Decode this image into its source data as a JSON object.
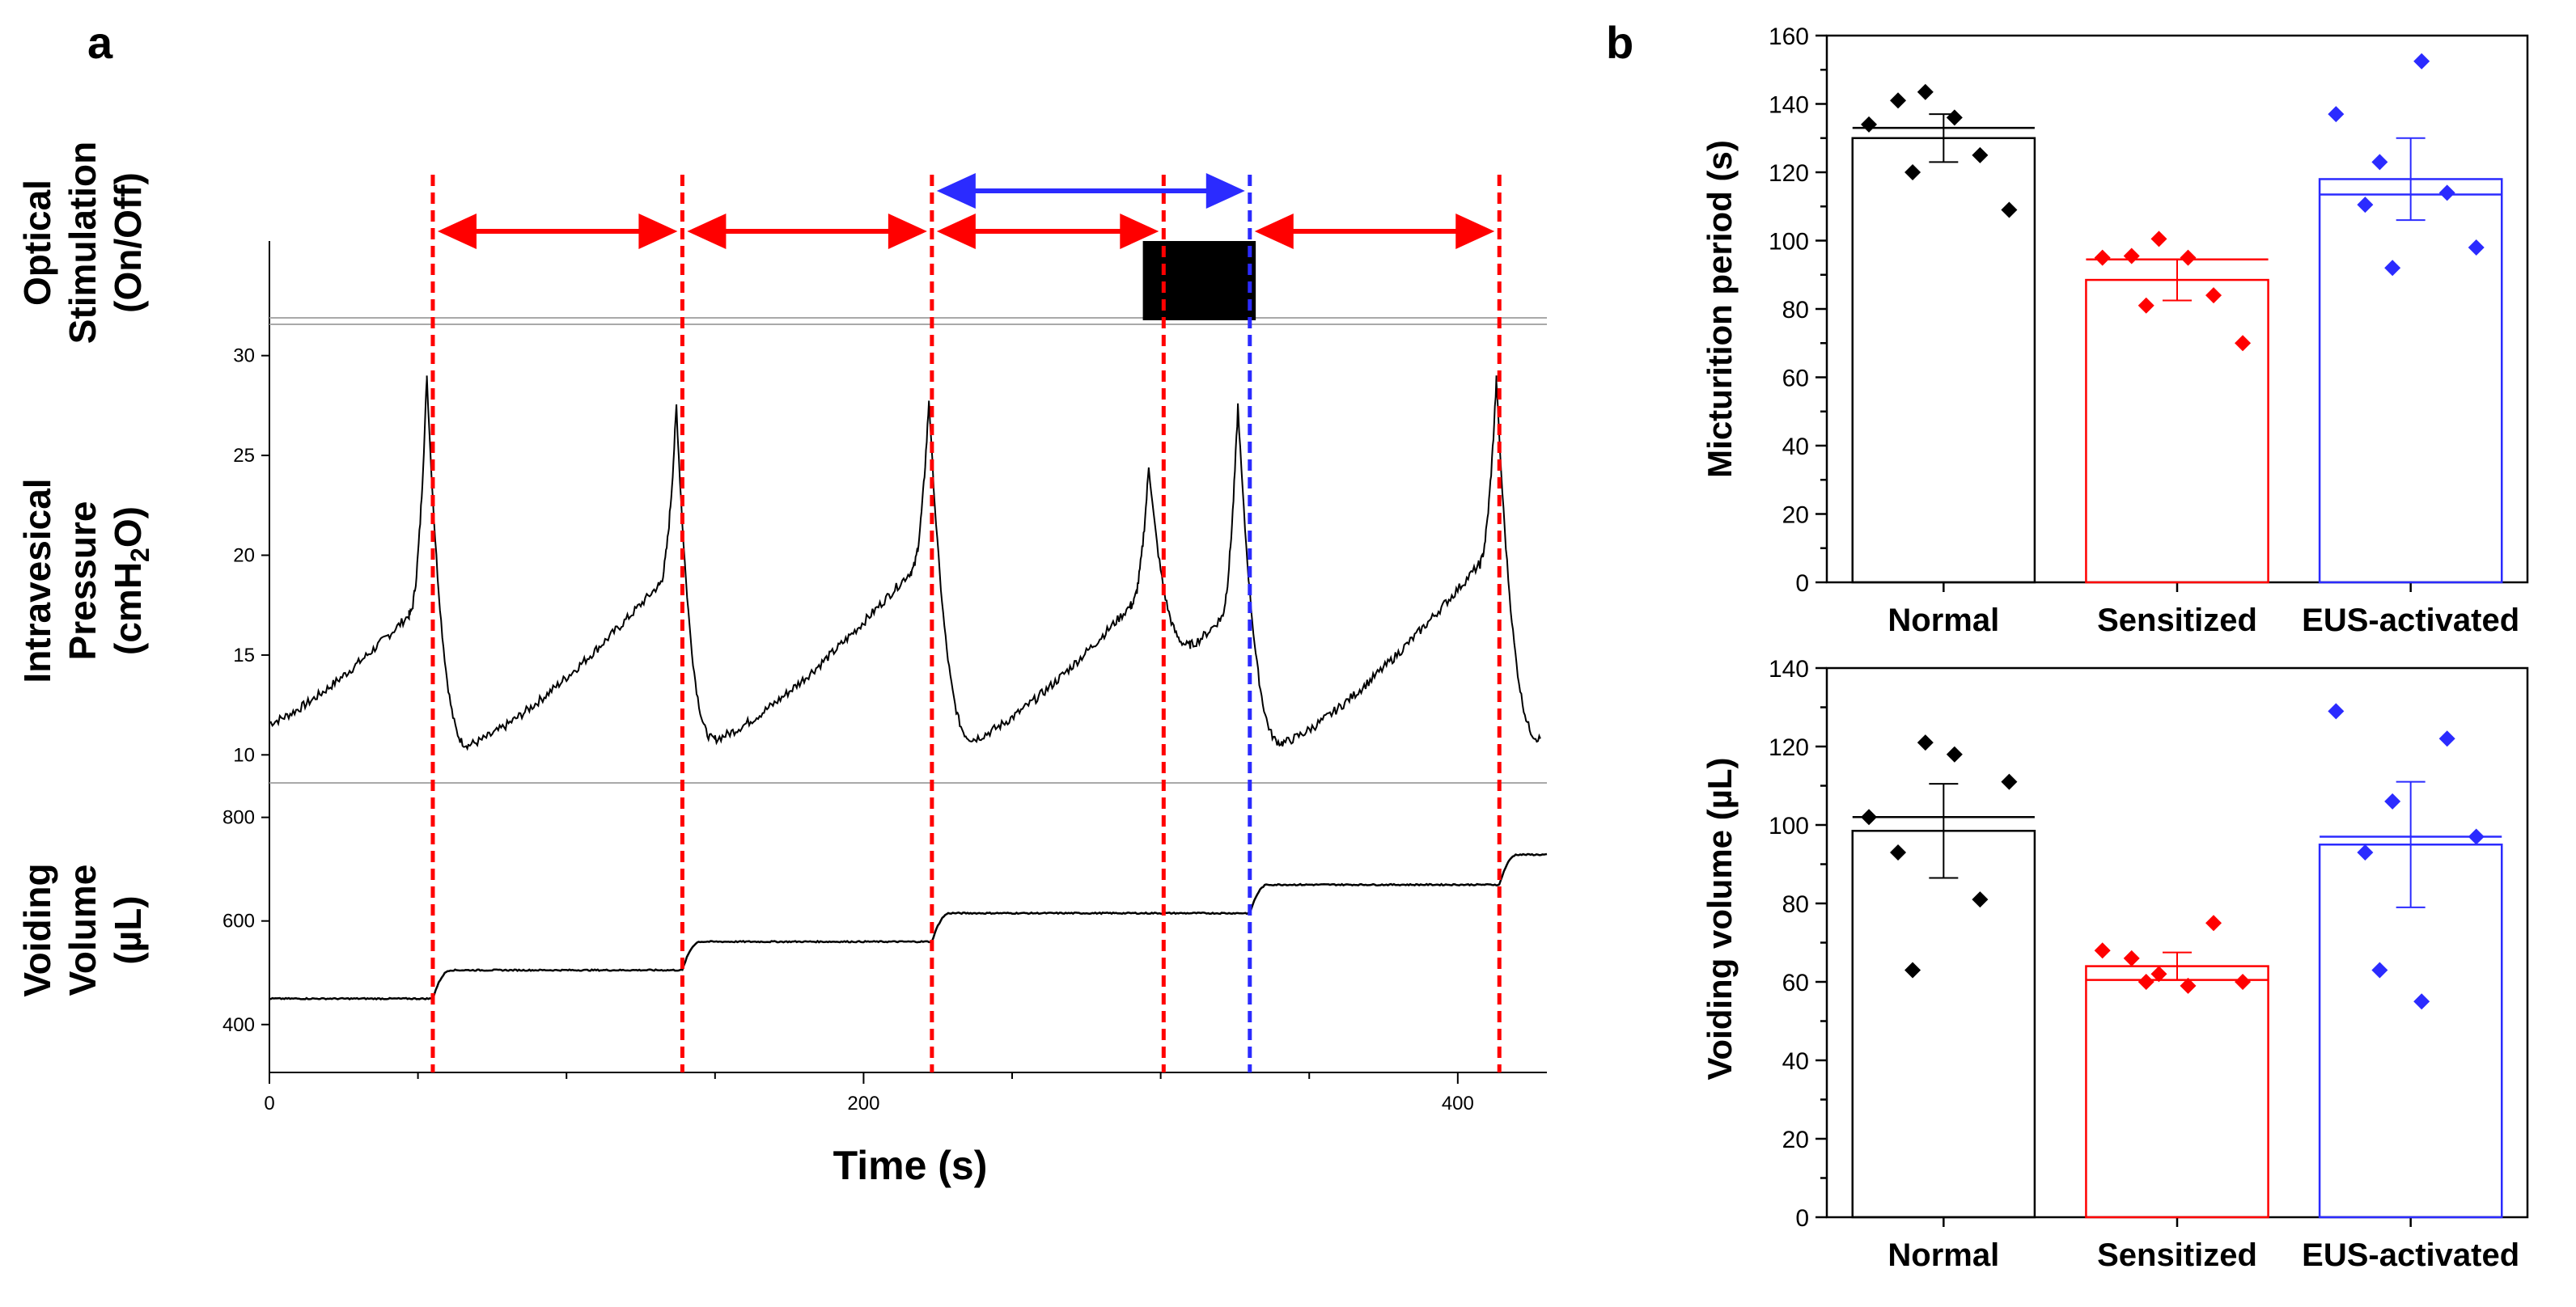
{
  "panels": {
    "a": "a",
    "b": "b"
  },
  "colors": {
    "red": "#ff0000",
    "blue": "#2b2bff",
    "black": "#000000",
    "gray": "#a9a9a9"
  },
  "chart_data": [
    {
      "type": "line",
      "title": "",
      "xlabel": "Time (s)",
      "xlim": [
        0,
        430
      ],
      "xticks": [
        0,
        200,
        400
      ],
      "tracks": {
        "stim": {
          "label_lines": [
            "Optical",
            "Stimulation",
            "(On/Off)"
          ],
          "on_interval": [
            294,
            332
          ]
        },
        "pressure": {
          "label_lines": [
            "Intravesical",
            "Pressure",
            "(cmH",
            "2",
            "O)"
          ],
          "ylim": [
            9,
            31
          ],
          "yticks": [
            10,
            15,
            20,
            25,
            30
          ],
          "micturition_peaks": [
            53,
            137,
            222,
            296,
            326,
            413
          ],
          "troughs": [
            67,
            150,
            237,
            310,
            341,
            428
          ],
          "baseline_start": 11.6
        },
        "volume": {
          "label_lines": [
            "Voiding",
            "Volume",
            "(µL)"
          ],
          "ylim": [
            320,
            840
          ],
          "yticks": [
            400,
            600,
            800
          ],
          "steps": [
            {
              "t": 0,
              "v": 450
            },
            {
              "t": 55,
              "v": 505
            },
            {
              "t": 139,
              "v": 560
            },
            {
              "t": 223,
              "v": 615
            },
            {
              "t": 330,
              "v": 670
            },
            {
              "t": 414,
              "v": 728
            }
          ]
        }
      },
      "markers": {
        "red_lines": [
          55,
          139,
          223,
          301,
          414
        ],
        "blue_lines": [
          330
        ],
        "red_arrows": [
          [
            55,
            139
          ],
          [
            139,
            223
          ],
          [
            223,
            301
          ],
          [
            330,
            414
          ]
        ],
        "blue_arrows": [
          [
            223,
            330
          ]
        ]
      }
    },
    {
      "type": "bar",
      "title": "",
      "xlabel": "",
      "ylabel": "Micturition period (s)",
      "ylim": [
        0,
        160
      ],
      "yticks": [
        0,
        20,
        40,
        60,
        80,
        100,
        120,
        140,
        160
      ],
      "categories": [
        "Normal",
        "Sensitized",
        "EUS-activated"
      ],
      "means": [
        130,
        88.5,
        118
      ],
      "medians": [
        133,
        94.5,
        113.5
      ],
      "sem": [
        7,
        6,
        12
      ],
      "points": [
        [
          134,
          141,
          143.5,
          136,
          120,
          125,
          109
        ],
        [
          95,
          95.5,
          100.5,
          95,
          81,
          84,
          70
        ],
        [
          137,
          110.5,
          92,
          152.5,
          123,
          114,
          98
        ]
      ]
    },
    {
      "type": "bar",
      "title": "",
      "xlabel": "",
      "ylabel": "Voiding volume (µL)",
      "ylim": [
        0,
        140
      ],
      "yticks": [
        0,
        20,
        40,
        60,
        80,
        100,
        120,
        140
      ],
      "categories": [
        "Normal",
        "Sensitized",
        "EUS-activated"
      ],
      "means": [
        98.5,
        64,
        95
      ],
      "medians": [
        102,
        60.5,
        97
      ],
      "sem": [
        12,
        3.5,
        16
      ],
      "points": [
        [
          102,
          93,
          121,
          118,
          63,
          81,
          111
        ],
        [
          68,
          66,
          62,
          59,
          60,
          75,
          60
        ],
        [
          129,
          93,
          106,
          55,
          63,
          122,
          97
        ]
      ]
    }
  ]
}
